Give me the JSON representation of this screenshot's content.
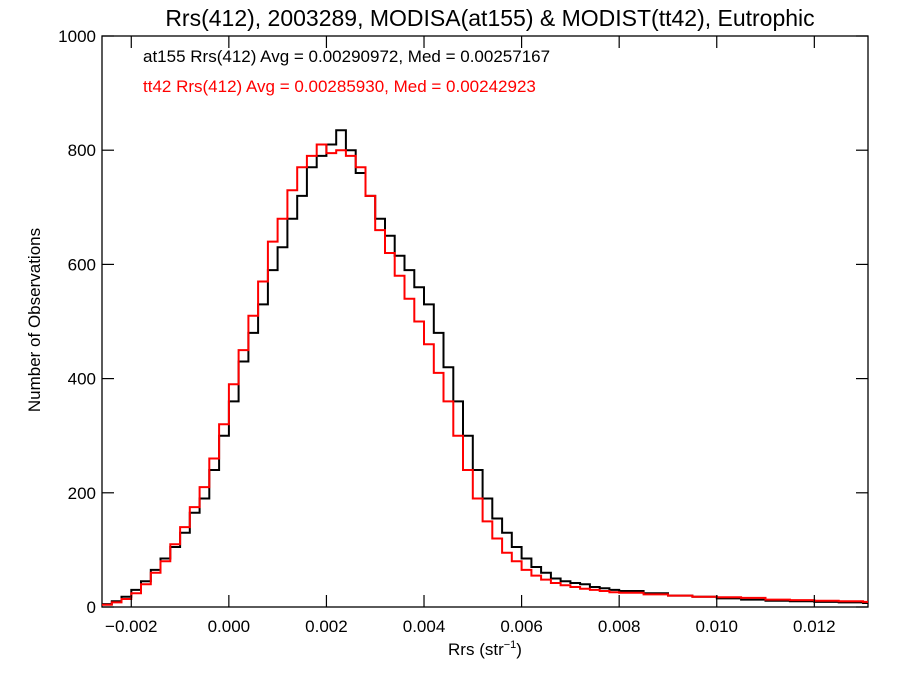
{
  "chart_data": {
    "type": "line",
    "step": true,
    "title": "Rrs(412), 2003289, MODISA(at155) & MODIST(tt42), Eutrophic",
    "xlabel_main": "Rrs (str",
    "xlabel_sup": "−1",
    "xlabel_close": ")",
    "ylabel": "Number of Observations",
    "xlim": [
      -0.0026,
      0.0131
    ],
    "ylim": [
      0,
      1000
    ],
    "x_ticks": [
      -0.002,
      0.0,
      0.002,
      0.004,
      0.006,
      0.008,
      0.01,
      0.012
    ],
    "x_tick_labels": [
      "−0.002",
      "0.000",
      "0.002",
      "0.004",
      "0.006",
      "0.008",
      "0.010",
      "0.012"
    ],
    "y_ticks": [
      0,
      200,
      400,
      600,
      800,
      1000
    ],
    "y_tick_labels": [
      "0",
      "200",
      "400",
      "600",
      "800",
      "1000"
    ],
    "grid": false,
    "legend_position": "top-left",
    "series": [
      {
        "name": "at155",
        "label": "at155 Rrs(412) Avg = 0.00290972, Med = 0.00257167",
        "color": "#000000",
        "points": [
          [
            -0.0026,
            5
          ],
          [
            -0.0024,
            10
          ],
          [
            -0.0022,
            18
          ],
          [
            -0.002,
            30
          ],
          [
            -0.0018,
            45
          ],
          [
            -0.0016,
            65
          ],
          [
            -0.0014,
            85
          ],
          [
            -0.0012,
            105
          ],
          [
            -0.001,
            130
          ],
          [
            -0.0008,
            165
          ],
          [
            -0.0006,
            190
          ],
          [
            -0.0004,
            240
          ],
          [
            -0.0002,
            300
          ],
          [
            0.0,
            360
          ],
          [
            0.0002,
            430
          ],
          [
            0.0004,
            480
          ],
          [
            0.0006,
            530
          ],
          [
            0.0008,
            590
          ],
          [
            0.001,
            630
          ],
          [
            0.0012,
            680
          ],
          [
            0.0014,
            720
          ],
          [
            0.0016,
            770
          ],
          [
            0.0018,
            790
          ],
          [
            0.002,
            810
          ],
          [
            0.0022,
            835
          ],
          [
            0.0024,
            800
          ],
          [
            0.0026,
            760
          ],
          [
            0.0028,
            720
          ],
          [
            0.003,
            680
          ],
          [
            0.0032,
            650
          ],
          [
            0.0034,
            615
          ],
          [
            0.0036,
            590
          ],
          [
            0.0038,
            560
          ],
          [
            0.004,
            530
          ],
          [
            0.0042,
            480
          ],
          [
            0.0044,
            420
          ],
          [
            0.0046,
            360
          ],
          [
            0.0048,
            300
          ],
          [
            0.005,
            240
          ],
          [
            0.0052,
            190
          ],
          [
            0.0054,
            155
          ],
          [
            0.0056,
            130
          ],
          [
            0.0058,
            105
          ],
          [
            0.006,
            85
          ],
          [
            0.0062,
            70
          ],
          [
            0.0064,
            60
          ],
          [
            0.0066,
            50
          ],
          [
            0.0068,
            45
          ],
          [
            0.007,
            42
          ],
          [
            0.0072,
            40
          ],
          [
            0.0074,
            35
          ],
          [
            0.0076,
            33
          ],
          [
            0.0078,
            30
          ],
          [
            0.008,
            28
          ],
          [
            0.0085,
            24
          ],
          [
            0.009,
            20
          ],
          [
            0.0095,
            18
          ],
          [
            0.01,
            15
          ],
          [
            0.0105,
            13
          ],
          [
            0.011,
            11
          ],
          [
            0.0115,
            10
          ],
          [
            0.012,
            9
          ],
          [
            0.0125,
            8
          ],
          [
            0.013,
            7
          ]
        ]
      },
      {
        "name": "tt42",
        "label": "tt42 Rrs(412) Avg = 0.00285930, Med = 0.00242923",
        "color": "#ff0000",
        "points": [
          [
            -0.0026,
            4
          ],
          [
            -0.0024,
            8
          ],
          [
            -0.0022,
            14
          ],
          [
            -0.002,
            24
          ],
          [
            -0.0018,
            40
          ],
          [
            -0.0016,
            60
          ],
          [
            -0.0014,
            80
          ],
          [
            -0.0012,
            110
          ],
          [
            -0.001,
            140
          ],
          [
            -0.0008,
            175
          ],
          [
            -0.0006,
            210
          ],
          [
            -0.0004,
            260
          ],
          [
            -0.0002,
            320
          ],
          [
            0.0,
            390
          ],
          [
            0.0002,
            450
          ],
          [
            0.0004,
            510
          ],
          [
            0.0006,
            570
          ],
          [
            0.0008,
            640
          ],
          [
            0.001,
            680
          ],
          [
            0.0012,
            730
          ],
          [
            0.0014,
            770
          ],
          [
            0.0016,
            790
          ],
          [
            0.0018,
            810
          ],
          [
            0.002,
            795
          ],
          [
            0.0022,
            800
          ],
          [
            0.0024,
            790
          ],
          [
            0.0026,
            770
          ],
          [
            0.0028,
            720
          ],
          [
            0.003,
            660
          ],
          [
            0.0032,
            620
          ],
          [
            0.0034,
            580
          ],
          [
            0.0036,
            540
          ],
          [
            0.0038,
            500
          ],
          [
            0.004,
            460
          ],
          [
            0.0042,
            410
          ],
          [
            0.0044,
            360
          ],
          [
            0.0046,
            300
          ],
          [
            0.0048,
            240
          ],
          [
            0.005,
            190
          ],
          [
            0.0052,
            150
          ],
          [
            0.0054,
            120
          ],
          [
            0.0056,
            95
          ],
          [
            0.0058,
            80
          ],
          [
            0.006,
            65
          ],
          [
            0.0062,
            55
          ],
          [
            0.0064,
            48
          ],
          [
            0.0066,
            42
          ],
          [
            0.0068,
            38
          ],
          [
            0.007,
            35
          ],
          [
            0.0072,
            32
          ],
          [
            0.0074,
            30
          ],
          [
            0.0076,
            28
          ],
          [
            0.0078,
            26
          ],
          [
            0.008,
            25
          ],
          [
            0.0085,
            22
          ],
          [
            0.009,
            20
          ],
          [
            0.0095,
            18
          ],
          [
            0.01,
            17
          ],
          [
            0.0105,
            16
          ],
          [
            0.011,
            13
          ],
          [
            0.0115,
            12
          ],
          [
            0.012,
            11
          ],
          [
            0.0125,
            10
          ],
          [
            0.013,
            9
          ]
        ]
      }
    ]
  }
}
